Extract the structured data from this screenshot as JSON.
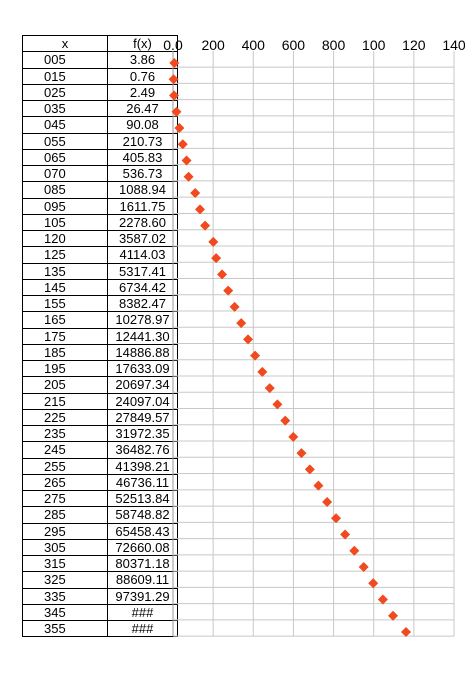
{
  "table": {
    "headers": [
      "x",
      "f(x)"
    ],
    "rows": [
      [
        "005",
        "3.86"
      ],
      [
        "015",
        "0.76"
      ],
      [
        "025",
        "2.49"
      ],
      [
        "035",
        "26.47"
      ],
      [
        "045",
        "90.08"
      ],
      [
        "055",
        "210.73"
      ],
      [
        "065",
        "405.83"
      ],
      [
        "070",
        "536.73"
      ],
      [
        "085",
        "1088.94"
      ],
      [
        "095",
        "1611.75"
      ],
      [
        "105",
        "2278.60"
      ],
      [
        "120",
        "3587.02"
      ],
      [
        "125",
        "4114.03"
      ],
      [
        "135",
        "5317.41"
      ],
      [
        "145",
        "6734.42"
      ],
      [
        "155",
        "8382.47"
      ],
      [
        "165",
        "10278.97"
      ],
      [
        "175",
        "12441.30"
      ],
      [
        "185",
        "14886.88"
      ],
      [
        "195",
        "17633.09"
      ],
      [
        "205",
        "20697.34"
      ],
      [
        "215",
        "24097.04"
      ],
      [
        "225",
        "27849.57"
      ],
      [
        "235",
        "31972.35"
      ],
      [
        "245",
        "36482.76"
      ],
      [
        "255",
        "41398.21"
      ],
      [
        "265",
        "46736.11"
      ],
      [
        "275",
        "52513.84"
      ],
      [
        "285",
        "58748.82"
      ],
      [
        "295",
        "65458.43"
      ],
      [
        "305",
        "72660.08"
      ],
      [
        "315",
        "80371.18"
      ],
      [
        "325",
        "88609.11"
      ],
      [
        "335",
        "97391.29"
      ],
      [
        "345",
        "###"
      ],
      [
        "355",
        "###"
      ]
    ]
  },
  "chart_data": {
    "type": "scatter",
    "marker": "diamond",
    "marker_color": "#f04a1e",
    "x_tick_labels": [
      "0.0",
      "200",
      "400",
      "600",
      "800",
      "100",
      "120",
      "140"
    ],
    "xlim": [
      0,
      140
    ],
    "grid": true,
    "categories": [
      "005",
      "015",
      "025",
      "035",
      "045",
      "055",
      "065",
      "070",
      "085",
      "095",
      "105",
      "120",
      "125",
      "135",
      "145",
      "155",
      "165",
      "175",
      "185",
      "195",
      "205",
      "215",
      "225",
      "235",
      "245",
      "255",
      "265",
      "275",
      "285",
      "295",
      "305",
      "315",
      "325",
      "335",
      "345",
      "355"
    ],
    "values": [
      3.86,
      0.76,
      2.49,
      26.47,
      90.08,
      210.73,
      405.83,
      536.73,
      1088.94,
      1611.75,
      2278.6,
      3587.02,
      4114.03,
      5317.41,
      6734.42,
      8382.47,
      10278.97,
      12441.3,
      14886.88,
      17633.09,
      20697.34,
      24097.04,
      27849.57,
      31972.35,
      36482.76,
      41398.21,
      46736.11,
      52513.84,
      58748.82,
      65458.43,
      72660.08,
      80371.18,
      88609.11,
      97391.29,
      107000,
      120000
    ]
  }
}
